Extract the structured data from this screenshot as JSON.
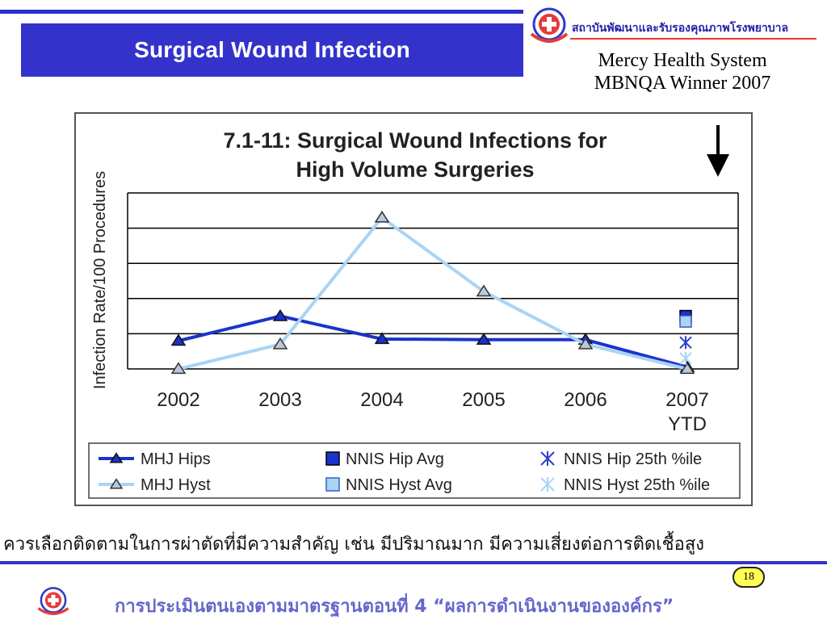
{
  "header": {
    "title": "Surgical Wound Infection",
    "org_name": "สถาบันพัฒนาและรับรองคุณภาพโรงพยาบาล",
    "subtitle_line1": "Mercy Health System",
    "subtitle_line2": "MBNQA Winner 2007"
  },
  "footer": {
    "note": "ควรเลือกติดตามในการผ่าตัดที่มีความสำคัญ เช่น มีปริมาณมาก มีความเสี่ยงต่อการติดเชื้อสูง",
    "page_number": "18",
    "text": "การประเมินตนเองตามมาตรฐานตอนที่ 4 “ผลการดำเนินงานขององค์กร”"
  },
  "colors": {
    "title_bar": "#3333cc",
    "hips": "#1a33cc",
    "hyst": "#a9d4f5",
    "hyst_marker_fill": "#b9c9d9"
  },
  "chart_data": {
    "type": "line",
    "title": "7.1-11: Surgical Wound Infections for High Volume Surgeries",
    "title_lines": [
      "7.1-11: Surgical Wound Infections for",
      "High Volume Surgeries"
    ],
    "ylabel": "Infection Rate/100 Procedures",
    "categories": [
      "2002",
      "2003",
      "2004",
      "2005",
      "2006",
      "2007\nYTD"
    ],
    "category_lines": [
      [
        "2002"
      ],
      [
        "2003"
      ],
      [
        "2004"
      ],
      [
        "2005"
      ],
      [
        "2006"
      ],
      [
        "2007",
        "YTD"
      ]
    ],
    "ylim": [
      0,
      5
    ],
    "y_gridlines": 5,
    "y_tick_labels_shown": false,
    "grid": true,
    "direction_indicator": "down-arrow",
    "series": [
      {
        "name": "MHJ Hips",
        "values": [
          0.8,
          1.5,
          0.85,
          0.83,
          0.83,
          0.05
        ]
      },
      {
        "name": "MHJ Hyst",
        "values": [
          0.0,
          0.7,
          4.3,
          2.2,
          0.7,
          0.0
        ]
      }
    ],
    "benchmarks": [
      {
        "name": "NNIS Hip Avg",
        "category": "2007\nYTD",
        "value": 1.5,
        "marker": "square"
      },
      {
        "name": "NNIS Hyst Avg",
        "category": "2007\nYTD",
        "value": 1.35,
        "marker": "square"
      },
      {
        "name": "NNIS Hip 25th %ile",
        "category": "2007\nYTD",
        "value": 0.75,
        "marker": "x"
      },
      {
        "name": "NNIS Hyst 25th %ile",
        "category": "2007\nYTD",
        "value": 0.3,
        "marker": "x"
      }
    ],
    "legend": {
      "placement": "bottom",
      "entries": [
        "MHJ Hips",
        "NNIS Hip Avg",
        "NNIS Hip 25th %ile",
        "MHJ Hyst",
        "NNIS Hyst Avg",
        "NNIS Hyst 25th %ile"
      ]
    }
  }
}
